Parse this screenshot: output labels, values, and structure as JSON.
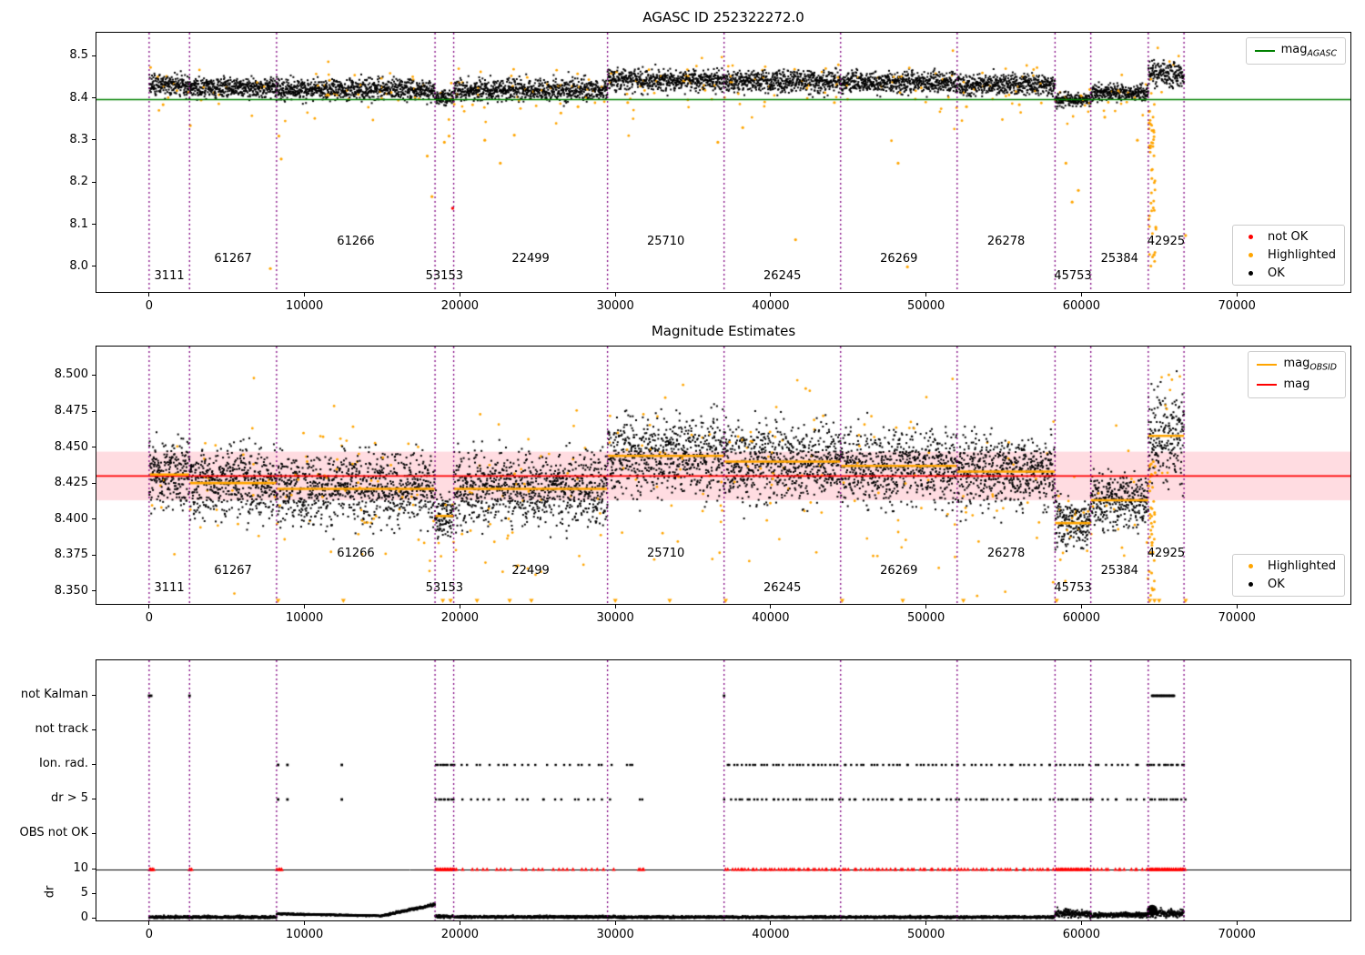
{
  "colors": {
    "ok": "#000000",
    "highlighted": "#ffa500",
    "not_ok": "#ff0000",
    "mag_agasc_line": "#008000",
    "mag_obsid_line": "#ffa500",
    "mag_line": "#ff0000",
    "mag_band": "#ff9aa8",
    "obs_boundary": "#800080",
    "dr_limit_line": "#000000",
    "flag_marker": "#000000",
    "dr_marker": "#000000",
    "dr_clipped_marker": "#ff0000"
  },
  "x_axis": {
    "lim": [
      -3390,
      77310
    ],
    "ticks": [
      0,
      10000,
      20000,
      30000,
      40000,
      50000,
      60000,
      70000
    ]
  },
  "boundaries": [
    0,
    2600,
    8200,
    18400,
    19600,
    29500,
    37000,
    44500,
    52000,
    58300,
    60600,
    64300,
    66600
  ],
  "observations": [
    {
      "obsid": "3111",
      "start": 0,
      "end": 2600,
      "mag_obsid": 8.431,
      "spread": 0.012
    },
    {
      "obsid": "61267",
      "start": 2600,
      "end": 8200,
      "mag_obsid": 8.425,
      "spread": 0.012
    },
    {
      "obsid": "61266",
      "start": 8200,
      "end": 18400,
      "mag_obsid": 8.421,
      "spread": 0.012
    },
    {
      "obsid": "53153",
      "start": 18400,
      "end": 19600,
      "mag_obsid": 8.402,
      "spread": 0.008
    },
    {
      "obsid": "22499",
      "start": 19600,
      "end": 29500,
      "mag_obsid": 8.421,
      "spread": 0.013
    },
    {
      "obsid": "25710",
      "start": 29500,
      "end": 37000,
      "mag_obsid": 8.444,
      "spread": 0.013
    },
    {
      "obsid": "26245",
      "start": 37000,
      "end": 44500,
      "mag_obsid": 8.44,
      "spread": 0.013
    },
    {
      "obsid": "26269",
      "start": 44500,
      "end": 52000,
      "mag_obsid": 8.437,
      "spread": 0.013
    },
    {
      "obsid": "26278",
      "start": 52000,
      "end": 58300,
      "mag_obsid": 8.433,
      "spread": 0.012
    },
    {
      "obsid": "45753",
      "start": 58300,
      "end": 60600,
      "mag_obsid": 8.397,
      "spread": 0.008
    },
    {
      "obsid": "25384",
      "start": 60600,
      "end": 64300,
      "mag_obsid": 8.413,
      "spread": 0.01
    },
    {
      "obsid": "42925",
      "start": 64300,
      "end": 66600,
      "mag_obsid": 8.458,
      "spread": 0.016
    }
  ],
  "chart_data": [
    {
      "type": "scatter",
      "title": "AGASC ID 252322272.0",
      "ylim": [
        7.937,
        8.557
      ],
      "yticks": [
        "8.0",
        "8.1",
        "8.2",
        "8.3",
        "8.4",
        "8.5"
      ],
      "ytick_values": [
        8.0,
        8.1,
        8.2,
        8.3,
        8.4,
        8.5
      ],
      "mag_agasc": 8.397,
      "legend_line": {
        "label_main": "mag",
        "label_sub": "AGASC"
      },
      "legend_markers": [
        {
          "label": "not OK",
          "color": "#ff0000"
        },
        {
          "label": "Highlighted",
          "color": "#ffa500"
        },
        {
          "label": "OK",
          "color": "#000000"
        }
      ],
      "not_ok_points": [
        [
          19530,
          8.137
        ]
      ],
      "highlighted_outliers": [
        [
          900,
          8.385
        ],
        [
          2650,
          8.335
        ],
        [
          7800,
          7.993
        ],
        [
          8350,
          8.31
        ],
        [
          8500,
          8.255
        ],
        [
          17900,
          8.262
        ],
        [
          18200,
          8.165
        ],
        [
          19000,
          8.295
        ],
        [
          19300,
          8.31
        ],
        [
          21600,
          8.3
        ],
        [
          22600,
          8.245
        ],
        [
          23500,
          8.312
        ],
        [
          26500,
          8.365
        ],
        [
          27600,
          8.38
        ],
        [
          30800,
          8.39
        ],
        [
          36600,
          8.295
        ],
        [
          38200,
          8.33
        ],
        [
          41600,
          8.062
        ],
        [
          44100,
          8.39
        ],
        [
          48200,
          8.245
        ],
        [
          48800,
          7.997
        ],
        [
          52600,
          8.38
        ],
        [
          56000,
          8.385
        ],
        [
          59000,
          8.245
        ],
        [
          59400,
          8.152
        ],
        [
          59800,
          8.18
        ],
        [
          61500,
          8.355
        ],
        [
          63600,
          8.3
        ],
        [
          66700,
          8.072
        ]
      ],
      "highlighted_column": {
        "x": 64550,
        "ymin": 7.99,
        "ymax": 8.42,
        "count": 50
      }
    },
    {
      "type": "scatter",
      "title": "Magnitude Estimates",
      "ylim": [
        8.3405,
        8.5205
      ],
      "yticks": [
        "8.350",
        "8.375",
        "8.400",
        "8.425",
        "8.450",
        "8.475",
        "8.500"
      ],
      "ytick_values": [
        8.35,
        8.375,
        8.4,
        8.425,
        8.45,
        8.475,
        8.5
      ],
      "mag": 8.43,
      "mag_band": [
        8.413,
        8.447
      ],
      "legend_lines": [
        {
          "label_main": "mag",
          "label_sub": "OBSID",
          "color": "#ffa500"
        },
        {
          "label_main": "mag",
          "label_sub": "",
          "color": "#ff0000"
        }
      ],
      "legend_markers": [
        {
          "label": "Highlighted",
          "color": "#ffa500"
        },
        {
          "label": "OK",
          "color": "#000000"
        }
      ],
      "clipped_low_x": [
        8300,
        12500,
        18900,
        19400,
        21100,
        23200,
        24600,
        30000,
        33500,
        37100,
        44600,
        48500,
        52400,
        58400,
        64400,
        64700,
        65000,
        66700
      ],
      "highlighted_column": {
        "x": 64550,
        "ymin": 8.345,
        "ymax": 8.44,
        "count": 40
      }
    },
    {
      "type": "flags",
      "flag_rows": [
        {
          "label": "not Kalman",
          "singles": [
            0,
            130,
            2600,
            37000
          ],
          "ranges": [
            {
              "start": 64500,
              "end": 66000,
              "count": 40
            }
          ]
        },
        {
          "label": "not track",
          "singles": [],
          "ranges": []
        },
        {
          "label": "Ion. rad.",
          "singles": [
            8300,
            8900,
            12400
          ],
          "ranges": [
            {
              "start": 18400,
              "end": 19700,
              "count": 10
            },
            {
              "start": 19700,
              "end": 30000,
              "count": 22
            },
            {
              "start": 30500,
              "end": 31300,
              "count": 3
            },
            {
              "start": 37000,
              "end": 44500,
              "count": 30
            },
            {
              "start": 44500,
              "end": 52000,
              "count": 26
            },
            {
              "start": 52000,
              "end": 58300,
              "count": 18
            },
            {
              "start": 58300,
              "end": 60600,
              "count": 8
            },
            {
              "start": 60600,
              "end": 64300,
              "count": 10
            },
            {
              "start": 64300,
              "end": 66700,
              "count": 14
            }
          ]
        },
        {
          "label": "dr > 5",
          "singles": [
            8300,
            8900,
            12400
          ],
          "ranges": [
            {
              "start": 18400,
              "end": 19700,
              "count": 9
            },
            {
              "start": 19700,
              "end": 30000,
              "count": 20
            },
            {
              "start": 31400,
              "end": 31800,
              "count": 2
            },
            {
              "start": 37000,
              "end": 44500,
              "count": 28
            },
            {
              "start": 44500,
              "end": 52000,
              "count": 25
            },
            {
              "start": 52000,
              "end": 58300,
              "count": 20
            },
            {
              "start": 58300,
              "end": 60600,
              "count": 10
            },
            {
              "start": 60600,
              "end": 64300,
              "count": 9
            },
            {
              "start": 64300,
              "end": 66700,
              "count": 13
            }
          ]
        },
        {
          "label": "OBS not OK",
          "singles": [],
          "ranges": []
        }
      ],
      "dr": {
        "ylabel": "dr",
        "ticks": [
          0,
          5,
          10
        ],
        "limit": 10,
        "trace_segments": [
          {
            "start": 0,
            "end": 8200,
            "y0": 0.3,
            "y1": 0.3,
            "noise": 0.25
          },
          {
            "start": 8200,
            "end": 12000,
            "y0": 0.95,
            "y1": 0.75,
            "noise": 0.15
          },
          {
            "start": 12000,
            "end": 15000,
            "y0": 0.75,
            "y1": 0.55,
            "noise": 0.12
          },
          {
            "start": 15000,
            "end": 18400,
            "y0": 0.6,
            "y1": 2.9,
            "noise": 0.25
          },
          {
            "start": 18400,
            "end": 19600,
            "y0": 0.45,
            "y1": 0.4,
            "noise": 0.3
          },
          {
            "start": 19600,
            "end": 30000,
            "y0": 0.35,
            "y1": 0.35,
            "noise": 0.25
          },
          {
            "start": 30000,
            "end": 58300,
            "y0": 0.3,
            "y1": 0.3,
            "noise": 0.22
          },
          {
            "start": 58300,
            "end": 60600,
            "y0": 1.1,
            "y1": 1.0,
            "noise": 0.85
          },
          {
            "start": 60600,
            "end": 64300,
            "y0": 0.7,
            "y1": 0.8,
            "noise": 0.5
          },
          {
            "start": 64300,
            "end": 66600,
            "y0": 1.2,
            "y1": 1.0,
            "noise": 0.8
          }
        ],
        "blob": {
          "x": 64550,
          "y": 1.7,
          "r": 6
        },
        "clipped_ranges": [
          {
            "start": 0,
            "end": 300,
            "count": 6
          },
          {
            "start": 2550,
            "end": 2750,
            "count": 3
          },
          {
            "start": 8200,
            "end": 8600,
            "count": 5
          },
          {
            "start": 18400,
            "end": 19700,
            "count": 22
          },
          {
            "start": 19700,
            "end": 30000,
            "count": 26
          },
          {
            "start": 31400,
            "end": 31900,
            "count": 4
          },
          {
            "start": 37000,
            "end": 44500,
            "count": 40
          },
          {
            "start": 44500,
            "end": 52000,
            "count": 32
          },
          {
            "start": 52000,
            "end": 58300,
            "count": 28
          },
          {
            "start": 58300,
            "end": 60600,
            "count": 30
          },
          {
            "start": 60600,
            "end": 64300,
            "count": 14
          },
          {
            "start": 64300,
            "end": 66700,
            "count": 40
          }
        ]
      }
    }
  ]
}
